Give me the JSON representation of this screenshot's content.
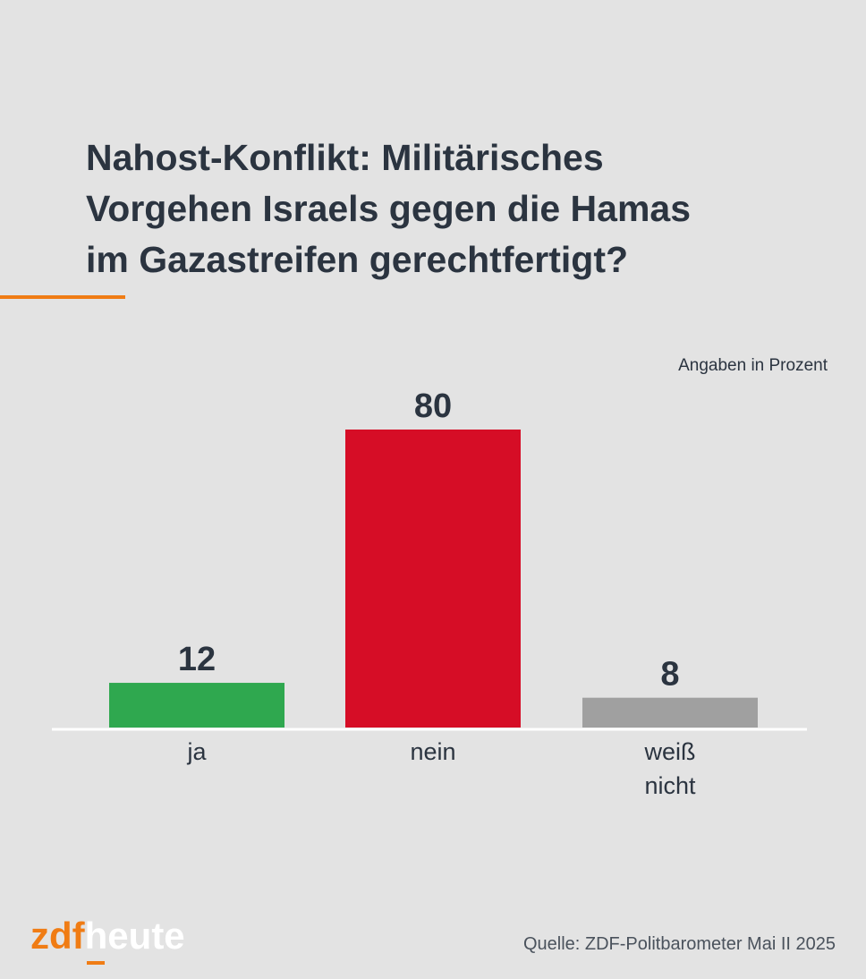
{
  "header": {
    "title": "Nahost-Konflikt: Militärisches\nVorgehen Israels gegen die Hamas\nim Gazastreifen gerechtfertigt?",
    "unit_note": "Angaben in Prozent"
  },
  "chart_data": {
    "type": "bar",
    "title": "Nahost-Konflikt: Militärisches Vorgehen Israels gegen die Hamas im Gazastreifen gerechtfertigt?",
    "categories": [
      "ja",
      "nein",
      "weiß\nnicht"
    ],
    "values": [
      12,
      80,
      8
    ],
    "colors": [
      "#2fa84f",
      "#d60d26",
      "#a0a0a0"
    ],
    "ylim": [
      0,
      80
    ],
    "grid": false,
    "legend": "none"
  },
  "footer": {
    "logo_zdf": "zdf",
    "logo_heute": "heute",
    "source": "Quelle: ZDF-Politbarometer Mai II 2025"
  }
}
